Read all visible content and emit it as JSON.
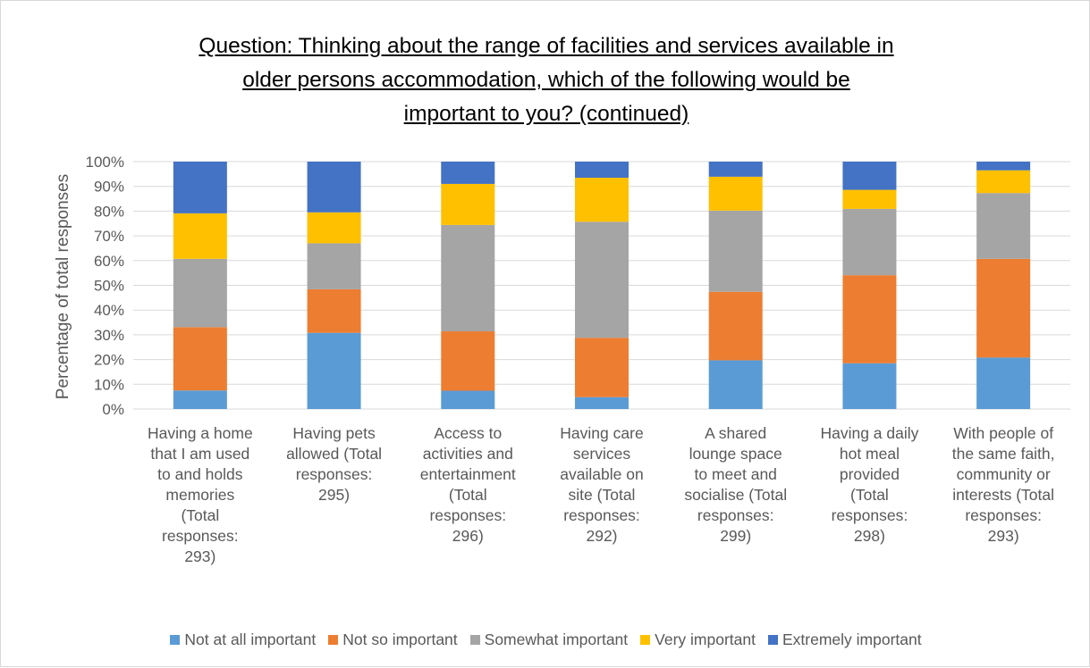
{
  "chart_data": {
    "type": "bar",
    "stacked": true,
    "title": "Question: Thinking about the range of facilities and services available in older persons accommodation, which of the following would be important to you? (continued)",
    "title_lines": [
      "Question: Thinking about the range of facilities and services available in",
      "older persons accommodation, which of the following would be",
      "important to you? (continued)"
    ],
    "ylabel": "Percentage of total responses",
    "ylim": [
      0,
      100
    ],
    "yticks": [
      "0%",
      "10%",
      "20%",
      "30%",
      "40%",
      "50%",
      "60%",
      "70%",
      "80%",
      "90%",
      "100%"
    ],
    "grid": true,
    "legend_position": "bottom",
    "categories": [
      "Having a home that I am used to and holds memories (Total responses: 293)",
      "Having pets allowed (Total responses: 295)",
      "Access to activities and entertainment (Total responses: 296)",
      "Having care services available on site (Total responses: 292)",
      "A shared lounge space to meet and socialise (Total responses: 299)",
      "Having a daily hot meal provided (Total responses: 298)",
      "With people of the same faith, community or interests (Total responses: 293)"
    ],
    "category_lines": [
      [
        "Having a home",
        "that I am used",
        "to and holds",
        "memories",
        "(Total",
        "responses:",
        "293)"
      ],
      [
        "Having pets",
        "allowed (Total",
        "responses:",
        "295)"
      ],
      [
        "Access to",
        "activities and",
        "entertainment",
        "(Total",
        "responses:",
        "296)"
      ],
      [
        "Having care",
        "services",
        "available on",
        "site (Total",
        "responses:",
        "292)"
      ],
      [
        "A shared",
        "lounge space",
        "to meet and",
        "socialise (Total",
        "responses:",
        "299)"
      ],
      [
        "Having a daily",
        "hot meal",
        "provided",
        "(Total",
        "responses:",
        "298)"
      ],
      [
        "With people of",
        "the same faith,",
        "community or",
        "interests (Total",
        "responses:",
        "293)"
      ]
    ],
    "series": [
      {
        "name": "Not at all important",
        "color": "#5b9bd5",
        "values": [
          7.5,
          30.8,
          7.4,
          4.8,
          19.7,
          18.5,
          20.8
        ]
      },
      {
        "name": "Not so important",
        "color": "#ed7d31",
        "values": [
          25.6,
          17.6,
          24.0,
          24.0,
          27.7,
          35.6,
          39.9
        ]
      },
      {
        "name": "Somewhat important",
        "color": "#a5a5a5",
        "values": [
          27.6,
          18.6,
          43.0,
          46.9,
          32.8,
          26.8,
          26.6
        ]
      },
      {
        "name": "Very important",
        "color": "#ffc000",
        "values": [
          18.4,
          12.5,
          16.6,
          17.8,
          13.7,
          7.7,
          9.2
        ]
      },
      {
        "name": "Extremely important",
        "color": "#4472c4",
        "values": [
          20.9,
          20.5,
          9.0,
          6.5,
          6.1,
          11.4,
          3.5
        ]
      }
    ]
  }
}
